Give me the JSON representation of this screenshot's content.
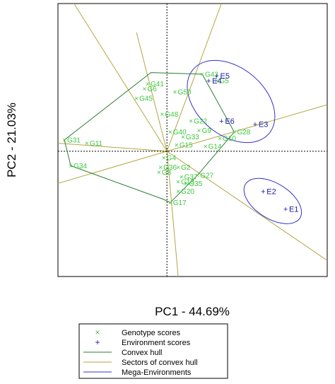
{
  "chart_data": {
    "type": "scatter",
    "title": "",
    "xlabel": "PC1 - 44.69%",
    "ylabel": "PC2 - 21.03%",
    "xlim": [
      -3.4,
      5.0
    ],
    "ylim": [
      -3.9,
      4.6
    ],
    "grid": false,
    "legend_placement": "bottom",
    "colors": {
      "genotype": "#3cc83c",
      "environment": "#1a1aa0",
      "hull": "#2e7d32",
      "sectors": "#b5a642",
      "mega": "#3333cc"
    },
    "genotypes": [
      {
        "label": "G43",
        "x": 1.1,
        "y": 2.4
      },
      {
        "label": "G5",
        "x": 1.55,
        "y": 2.2
      },
      {
        "label": "G41",
        "x": -0.6,
        "y": 2.1
      },
      {
        "label": "G6",
        "x": -0.7,
        "y": 1.95
      },
      {
        "label": "G45",
        "x": -0.95,
        "y": 1.65
      },
      {
        "label": "G50",
        "x": 0.25,
        "y": 1.85
      },
      {
        "label": "G48",
        "x": -0.15,
        "y": 1.15
      },
      {
        "label": "G22",
        "x": 0.75,
        "y": 0.95
      },
      {
        "label": "G40",
        "x": 0.1,
        "y": 0.6
      },
      {
        "label": "G9",
        "x": 1.0,
        "y": 0.65
      },
      {
        "label": "G28",
        "x": 2.1,
        "y": 0.6
      },
      {
        "label": "G10",
        "x": 1.65,
        "y": 0.4
      },
      {
        "label": "G33",
        "x": 0.5,
        "y": 0.45
      },
      {
        "label": "G15",
        "x": 0.3,
        "y": 0.2
      },
      {
        "label": "G14",
        "x": 1.2,
        "y": 0.15
      },
      {
        "label": "G31",
        "x": -3.2,
        "y": 0.35
      },
      {
        "label": "G11",
        "x": -2.5,
        "y": 0.25
      },
      {
        "label": "G4",
        "x": -0.1,
        "y": -0.2
      },
      {
        "label": "G34",
        "x": -3.0,
        "y": -0.45
      },
      {
        "label": "G36",
        "x": -0.2,
        "y": -0.5
      },
      {
        "label": "G2",
        "x": 0.35,
        "y": -0.5
      },
      {
        "label": "G8",
        "x": -0.25,
        "y": -0.65
      },
      {
        "label": "G37",
        "x": 0.45,
        "y": -0.8
      },
      {
        "label": "G27",
        "x": 0.95,
        "y": -0.75
      },
      {
        "label": "G13",
        "x": 0.35,
        "y": -0.95
      },
      {
        "label": "G35",
        "x": 0.6,
        "y": -1.0
      },
      {
        "label": "G20",
        "x": 0.35,
        "y": -1.25
      },
      {
        "label": "G17",
        "x": 0.1,
        "y": -1.6
      }
    ],
    "environments": [
      {
        "label": "E5",
        "x": 1.55,
        "y": 2.35
      },
      {
        "label": "E4",
        "x": 1.3,
        "y": 2.2
      },
      {
        "label": "E6",
        "x": 1.7,
        "y": 0.95
      },
      {
        "label": "E3",
        "x": 2.75,
        "y": 0.85
      },
      {
        "label": "E2",
        "x": 3.0,
        "y": -1.25
      },
      {
        "label": "E1",
        "x": 3.7,
        "y": -1.8
      }
    ],
    "hull": [
      {
        "x": -0.5,
        "y": 2.45
      },
      {
        "x": 1.1,
        "y": 2.4
      },
      {
        "x": 2.1,
        "y": 0.6
      },
      {
        "x": 0.95,
        "y": -0.75
      },
      {
        "x": 0.1,
        "y": -1.6
      },
      {
        "x": -0.1,
        "y": -1.5
      },
      {
        "x": -3.0,
        "y": -0.45
      },
      {
        "x": -3.2,
        "y": 0.35
      }
    ],
    "sector_rays": [
      {
        "x": -2.9,
        "y": 4.6
      },
      {
        "x": 1.7,
        "y": 4.6
      },
      {
        "x": 5.0,
        "y": 1.45
      },
      {
        "x": 5.0,
        "y": -3.4
      },
      {
        "x": 0.35,
        "y": -3.9
      },
      {
        "x": -3.4,
        "y": -1.0
      },
      {
        "x": -3.4,
        "y": 0.25
      },
      {
        "x": -0.95,
        "y": 3.7
      }
    ],
    "mega_environments": [
      {
        "cx": 2.0,
        "cy": 1.55,
        "rx": 1.55,
        "ry": 1.05,
        "angle": 40
      },
      {
        "cx": 3.3,
        "cy": -1.55,
        "rx": 1.0,
        "ry": 0.55,
        "angle": 32
      }
    ],
    "legend": [
      {
        "key": "genotype",
        "symbol": "×",
        "label": "Genotype scores"
      },
      {
        "key": "environment",
        "symbol": "+",
        "label": "Environment scores"
      },
      {
        "key": "hull",
        "symbol": "line",
        "label": "Convex hull"
      },
      {
        "key": "sectors",
        "symbol": "line",
        "label": "Sectors of convex hull"
      },
      {
        "key": "mega",
        "symbol": "line",
        "label": "Mega-Environments"
      }
    ]
  }
}
